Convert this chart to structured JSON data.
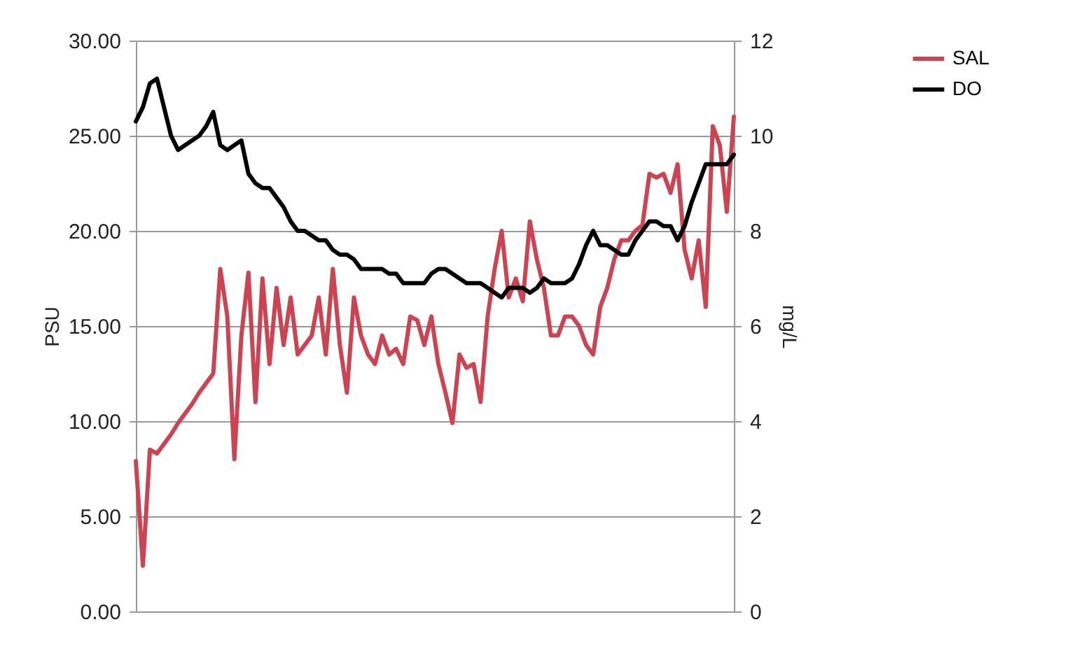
{
  "chart_data": {
    "type": "line",
    "categories": [
      null,
      null,
      null,
      null,
      null,
      null,
      null,
      null,
      null,
      null,
      null,
      null,
      null,
      null,
      null,
      null,
      null,
      null,
      null,
      null,
      null,
      null,
      null,
      null,
      null,
      null,
      null,
      null,
      null,
      null,
      null,
      null,
      null,
      null,
      null,
      null,
      null,
      null,
      null,
      null,
      null,
      null,
      null,
      null,
      null,
      null,
      null,
      null,
      null,
      null,
      null,
      null,
      null,
      null,
      null,
      null,
      null,
      null,
      null,
      null,
      null,
      null,
      null,
      null,
      null,
      null,
      null,
      null,
      null,
      null,
      null,
      null,
      null,
      null,
      null,
      null,
      null,
      null,
      null,
      null,
      null,
      null,
      null,
      null,
      null,
      null
    ],
    "ylabel": "PSU",
    "y2label": "mg/L",
    "ylim": [
      0,
      30
    ],
    "yticks": [
      {
        "value": 0,
        "label": "0.00"
      },
      {
        "value": 5,
        "label": "5.00"
      },
      {
        "value": 10,
        "label": "10.00"
      },
      {
        "value": 15,
        "label": "15.00"
      },
      {
        "value": 20,
        "label": "20.00"
      },
      {
        "value": 25,
        "label": "25.00"
      },
      {
        "value": 30,
        "label": "30.00"
      }
    ],
    "y2lim": [
      0,
      12
    ],
    "y2ticks": [
      0,
      2,
      4,
      6,
      8,
      10,
      12
    ],
    "grid": "y",
    "legend": "right",
    "line_style": "solid",
    "marker": "none",
    "series": [
      {
        "name": "SAL",
        "color": "#cc4452",
        "values": [
          7.9,
          2.4,
          8.5,
          8.3,
          8.8,
          9.3,
          9.9,
          10.4,
          10.9,
          11.5,
          12.0,
          12.5,
          18.0,
          15.5,
          8.0,
          14.5,
          17.8,
          11.0,
          17.5,
          13.0,
          17.0,
          14.0,
          16.5,
          13.5,
          14.0,
          14.5,
          16.5,
          13.5,
          18.0,
          14.0,
          11.5,
          16.5,
          14.5,
          13.5,
          13.0,
          14.5,
          13.5,
          13.8,
          13.0,
          15.5,
          15.3,
          14.0,
          15.5,
          13.0,
          11.5,
          9.9,
          13.5,
          12.8,
          13.0,
          11.0,
          15.5,
          18.0,
          20.0,
          16.5,
          17.5,
          16.3,
          20.5,
          18.5,
          17.0,
          14.5,
          14.5,
          15.5,
          15.5,
          15.0,
          14.0,
          13.5,
          16.0,
          17.0,
          18.5,
          19.5,
          19.5,
          20.0,
          20.3,
          23.0,
          22.8,
          23.0,
          22.0,
          23.5,
          19.0,
          17.5,
          19.5,
          16.0,
          25.5,
          24.5,
          21.0,
          26.0
        ]
      },
      {
        "name": "DO",
        "color": "#000000",
        "axis": "y2",
        "values": [
          10.3,
          10.6,
          11.1,
          11.2,
          10.6,
          10.0,
          9.7,
          9.8,
          9.9,
          10.0,
          10.2,
          10.5,
          9.8,
          9.7,
          9.8,
          9.9,
          9.2,
          9.0,
          8.9,
          8.9,
          8.7,
          8.5,
          8.2,
          8.0,
          8.0,
          7.9,
          7.8,
          7.8,
          7.6,
          7.5,
          7.5,
          7.4,
          7.2,
          7.2,
          7.2,
          7.2,
          7.1,
          7.1,
          6.9,
          6.9,
          6.9,
          6.9,
          7.1,
          7.2,
          7.2,
          7.1,
          7.0,
          6.9,
          6.9,
          6.9,
          6.8,
          6.7,
          6.6,
          6.8,
          6.8,
          6.8,
          6.7,
          6.8,
          7.0,
          6.9,
          6.9,
          6.9,
          7.0,
          7.3,
          7.7,
          8.0,
          7.7,
          7.7,
          7.6,
          7.5,
          7.5,
          7.8,
          8.0,
          8.2,
          8.2,
          8.1,
          8.1,
          7.8,
          8.1,
          8.6,
          9.0,
          9.4,
          9.4,
          9.4,
          9.4,
          9.6
        ]
      }
    ]
  }
}
